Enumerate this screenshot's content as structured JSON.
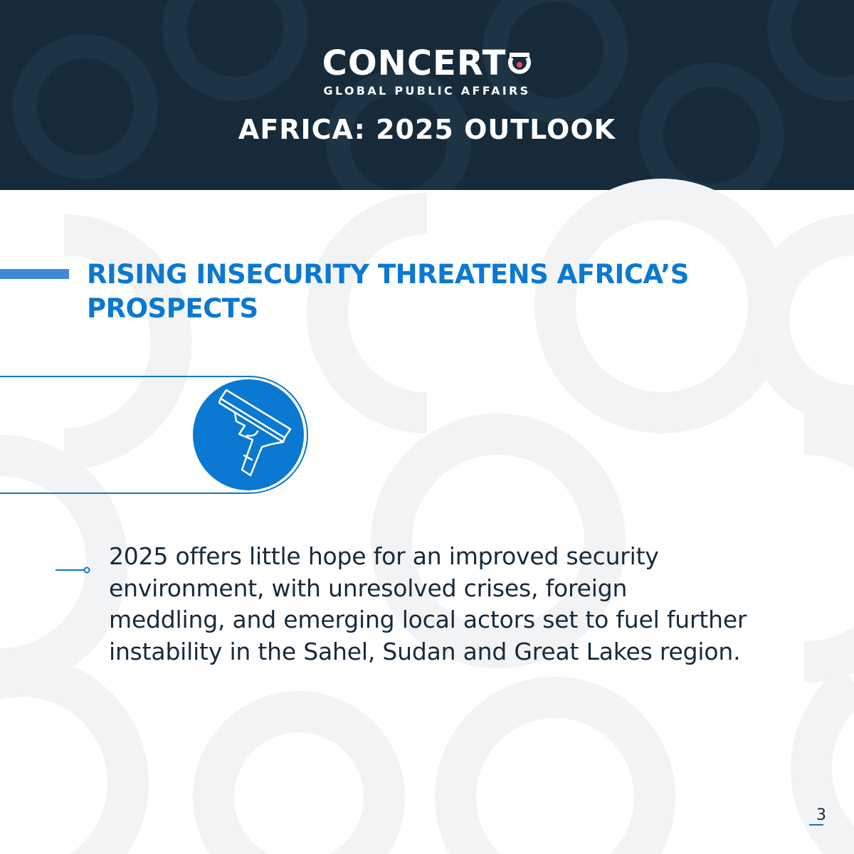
{
  "brand": {
    "name": "CONCERT",
    "tagline": "GLOBAL PUBLIC AFFAIRS",
    "accent_color": "#e8496a"
  },
  "header": {
    "title": "AFRICA: 2025 OUTLOOK",
    "background_color": "#172a3a"
  },
  "section": {
    "title": "RISING INSECURITY THREATENS AFRICA’S PROSPECTS",
    "title_color": "#0b78d1",
    "icon": "handgun-icon"
  },
  "body": {
    "text": "2025 offers little hope for an improved security environment, with unresolved crises, foreign meddling, and emerging local actors set to fuel further instability in the Sahel, Sudan and Great Lakes region.",
    "text_color": "#172a3a"
  },
  "footer": {
    "page_number": "3"
  }
}
